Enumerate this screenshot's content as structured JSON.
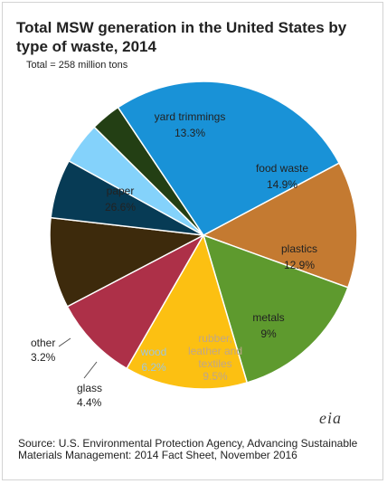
{
  "title": "Total MSW generation in the United States by type of waste, 2014",
  "subtitle": "Total = 258 million tons",
  "source": "Source: U.S. Environmental Protection Agency, Advancing Sustainable Materials Management: 2014 Fact Sheet, November 2016",
  "logo": "eia",
  "chart_data": {
    "type": "pie",
    "title": "Total MSW generation in the United States by type of waste, 2014",
    "subtitle": "Total = 258 million tons",
    "unit": "percent",
    "slices": [
      {
        "label": "yard trimmings",
        "value": 13.3,
        "value_label": "13.3%",
        "color": "#c47a31"
      },
      {
        "label": "food waste",
        "value": 14.9,
        "value_label": "14.9%",
        "color": "#5e9a2e"
      },
      {
        "label": "plastics",
        "value": 12.9,
        "value_label": "12.9%",
        "color": "#fcc012"
      },
      {
        "label": "metals",
        "value": 9,
        "value_label": "9%",
        "color": "#ad3048"
      },
      {
        "label": "rubber, leather and textiles",
        "value": 9.5,
        "value_label": "9.5%",
        "color": "#3d2a0c"
      },
      {
        "label": "wood",
        "value": 6.2,
        "value_label": "6.2%",
        "color": "#073b55"
      },
      {
        "label": "glass",
        "value": 4.4,
        "value_label": "4.4%",
        "color": "#84d2fb"
      },
      {
        "label": "other",
        "value": 3.2,
        "value_label": "3.2%",
        "color": "#233f14"
      },
      {
        "label": "paper",
        "value": 26.6,
        "value_label": "26.6%",
        "color": "#1992d7"
      }
    ]
  }
}
